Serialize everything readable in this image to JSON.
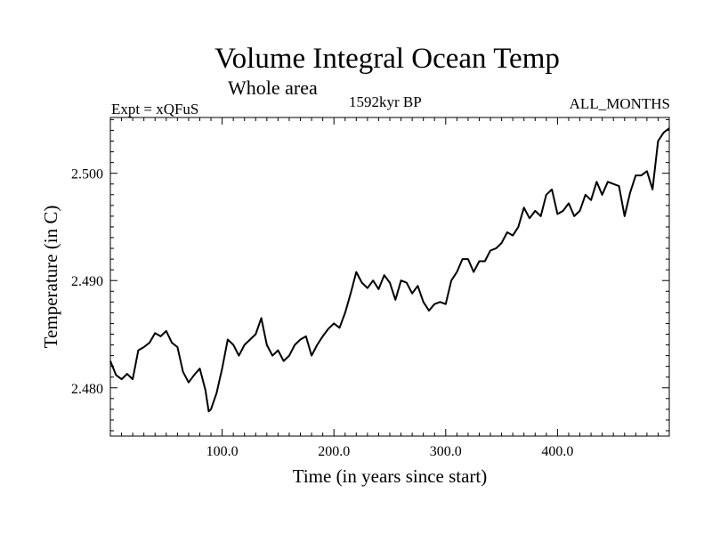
{
  "chart_data": {
    "type": "line",
    "title": "Volume Integral Ocean Temp",
    "subtitle": "Whole area",
    "experiment": "Expt = xQFuS",
    "time_label": "1592kyr BP",
    "months": "ALL_MONTHS",
    "xlabel": "Time (in years since start)",
    "ylabel": "Temperature (in C)",
    "xlim": [
      0,
      500
    ],
    "ylim": [
      2.4755,
      2.5052
    ],
    "xticks": [
      100,
      200,
      300,
      400
    ],
    "xtick_labels": [
      "100.0",
      "200.0",
      "300.0",
      "400.0"
    ],
    "yticks": [
      2.48,
      2.49,
      2.5
    ],
    "ytick_labels": [
      "2.480",
      "2.490",
      "2.500"
    ],
    "grid": false,
    "series": [
      {
        "name": "Volume Integral Ocean Temp",
        "x": [
          0,
          5,
          10,
          15,
          20,
          25,
          30,
          35,
          40,
          45,
          50,
          55,
          60,
          65,
          70,
          75,
          80,
          85,
          88,
          90,
          95,
          100,
          105,
          110,
          115,
          120,
          125,
          130,
          135,
          140,
          145,
          150,
          155,
          160,
          165,
          170,
          175,
          180,
          185,
          190,
          195,
          200,
          205,
          210,
          215,
          220,
          225,
          230,
          235,
          240,
          245,
          250,
          255,
          260,
          265,
          270,
          275,
          280,
          285,
          290,
          295,
          300,
          305,
          310,
          315,
          320,
          325,
          330,
          335,
          340,
          345,
          350,
          355,
          360,
          365,
          370,
          375,
          380,
          385,
          390,
          395,
          400,
          405,
          410,
          415,
          420,
          425,
          430,
          435,
          440,
          445,
          450,
          455,
          460,
          465,
          470,
          475,
          480,
          485,
          490,
          495,
          500
        ],
        "values": [
          2.4825,
          2.4812,
          2.4808,
          2.4813,
          2.4808,
          2.4835,
          2.4838,
          2.4842,
          2.4851,
          2.4848,
          2.4853,
          2.4842,
          2.4838,
          2.4815,
          2.4805,
          2.4812,
          2.4818,
          2.4798,
          2.4778,
          2.478,
          2.4795,
          2.4818,
          2.4845,
          2.484,
          2.483,
          2.484,
          2.4845,
          2.485,
          2.4865,
          2.484,
          2.483,
          2.4835,
          2.4825,
          2.483,
          2.484,
          2.4845,
          2.4848,
          2.483,
          2.484,
          2.4848,
          2.4855,
          2.486,
          2.4856,
          2.487,
          2.4888,
          2.4908,
          2.4898,
          2.4893,
          2.49,
          2.4892,
          2.4905,
          2.4898,
          2.4882,
          2.49,
          2.4898,
          2.4888,
          2.4895,
          2.488,
          2.4872,
          2.4878,
          2.488,
          2.4878,
          2.49,
          2.4908,
          2.492,
          2.492,
          2.4908,
          2.4918,
          2.4918,
          2.4928,
          2.493,
          2.4935,
          2.4945,
          2.4942,
          2.495,
          2.4968,
          2.4958,
          2.4965,
          2.496,
          2.498,
          2.4985,
          2.4962,
          2.4965,
          2.4972,
          2.496,
          2.4965,
          2.498,
          2.4975,
          2.4992,
          2.498,
          2.4992,
          2.499,
          2.4988,
          2.496,
          2.4982,
          2.4998,
          2.4998,
          2.5002,
          2.4985,
          2.503,
          2.5038,
          2.5042
        ]
      }
    ]
  }
}
